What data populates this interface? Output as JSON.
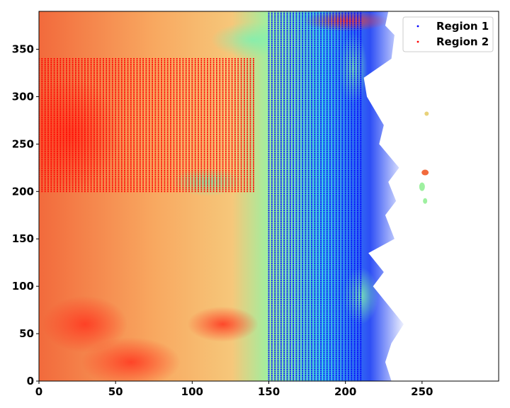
{
  "chart_data": {
    "type": "scatter",
    "title": "",
    "xlabel": "",
    "ylabel": "",
    "xlim": [
      0,
      300
    ],
    "ylim": [
      0,
      390
    ],
    "xticks": [
      0,
      50,
      100,
      150,
      200,
      250
    ],
    "yticks": [
      0,
      50,
      100,
      150,
      200,
      250,
      300,
      350
    ],
    "background": "ocean field heatmap (rainbow colormap) with white land mask on the right",
    "legend_position": "top-right",
    "series": [
      {
        "name": "Region 1",
        "color": "#0000ff",
        "marker": "point",
        "x_range": [
          150,
          210
        ],
        "y_range": [
          0,
          390
        ]
      },
      {
        "name": "Region 2",
        "color": "#ff0000",
        "marker": "point",
        "x_range": [
          0,
          140
        ],
        "y_range": [
          200,
          340
        ]
      }
    ]
  }
}
